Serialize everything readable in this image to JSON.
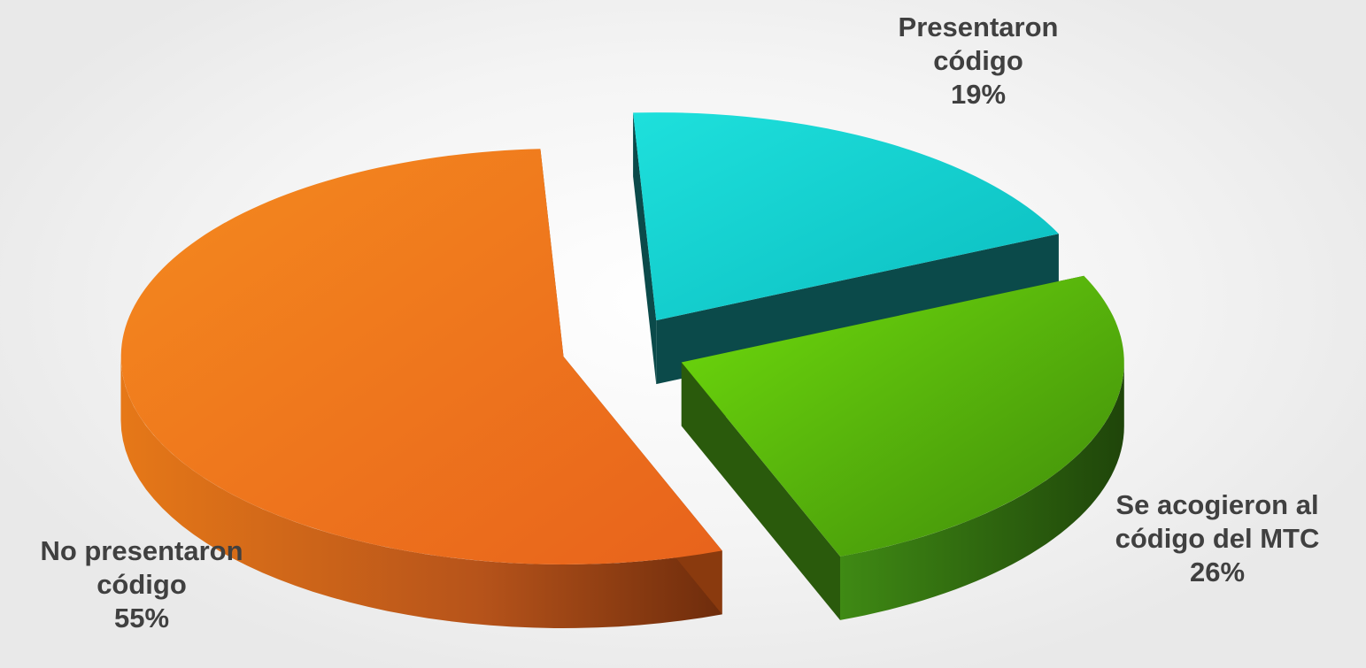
{
  "chart_data": {
    "type": "pie",
    "style": "3d-exploded",
    "slices": [
      {
        "key": "presented",
        "label_lines": [
          "Presentaron",
          "código"
        ],
        "value_label": "19%",
        "value": 19,
        "color": "#12cfcf"
      },
      {
        "key": "mtc",
        "label_lines": [
          "Se acogieron al",
          "código del MTC"
        ],
        "value_label": "26%",
        "value": 26,
        "color": "#5fbd10"
      },
      {
        "key": "not_presented",
        "label_lines": [
          "No presentaron",
          "código"
        ],
        "value_label": "55%",
        "value": 55,
        "color": "#f07d1a"
      }
    ],
    "legend": "none"
  }
}
